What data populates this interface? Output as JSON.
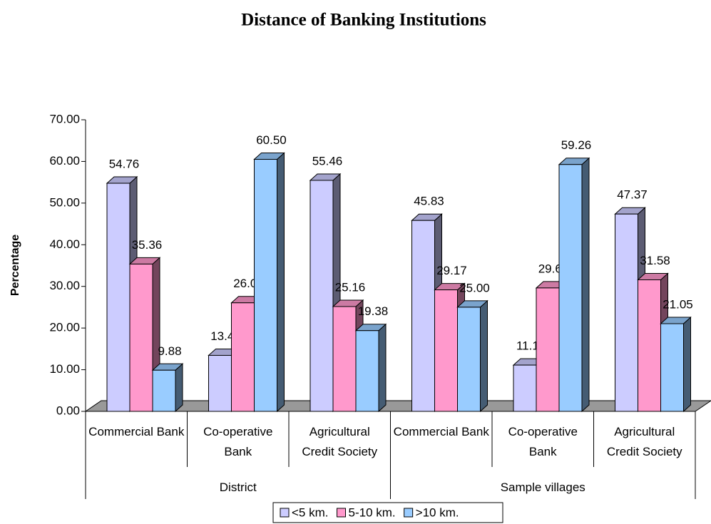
{
  "chart_data": {
    "type": "bar3d",
    "title": "Distance of Banking Institutions",
    "ylabel": "Percentage",
    "categories": [
      "Commercial Bank",
      "Co-operative Bank",
      "Agricultural Credit Society",
      "Commercial Bank",
      "Co-operative Bank",
      "Agricultural Credit Society"
    ],
    "groups": [
      "District",
      "Sample villages"
    ],
    "series": [
      {
        "name": "<5 km.",
        "color": "#ccccff",
        "values": [
          54.76,
          13.44,
          55.46,
          45.83,
          11.11,
          47.37
        ],
        "value_labels": [
          "54.76",
          "13.44",
          "55.46",
          "45.83",
          "11.11",
          "47.37"
        ]
      },
      {
        "name": "5-10 km.",
        "color": "#ff99cc",
        "values": [
          35.36,
          26.06,
          25.16,
          29.17,
          29.63,
          31.58
        ],
        "value_labels": [
          "35.36",
          "26.06",
          "25.16",
          "29.17",
          "29.63",
          "31.58"
        ]
      },
      {
        "name": ">10 km.",
        "color": "#99ccff",
        "values": [
          9.88,
          60.5,
          19.38,
          25,
          59.26,
          21.05
        ],
        "value_labels": [
          "9.88",
          "60.50",
          "19.38",
          "25.00",
          "59.26",
          "21.05"
        ]
      }
    ],
    "ylim": [
      0,
      70
    ],
    "yticks": [
      {
        "value": 0,
        "label": "0.00"
      },
      {
        "value": 10,
        "label": "10.00"
      },
      {
        "value": 20,
        "label": "20.00"
      },
      {
        "value": 30,
        "label": "30.00"
      },
      {
        "value": 40,
        "label": "40.00"
      },
      {
        "value": 50,
        "label": "50.00"
      },
      {
        "value": 60,
        "label": "60.00"
      },
      {
        "value": 70,
        "label": "70.00"
      }
    ],
    "legend": "bottom"
  }
}
